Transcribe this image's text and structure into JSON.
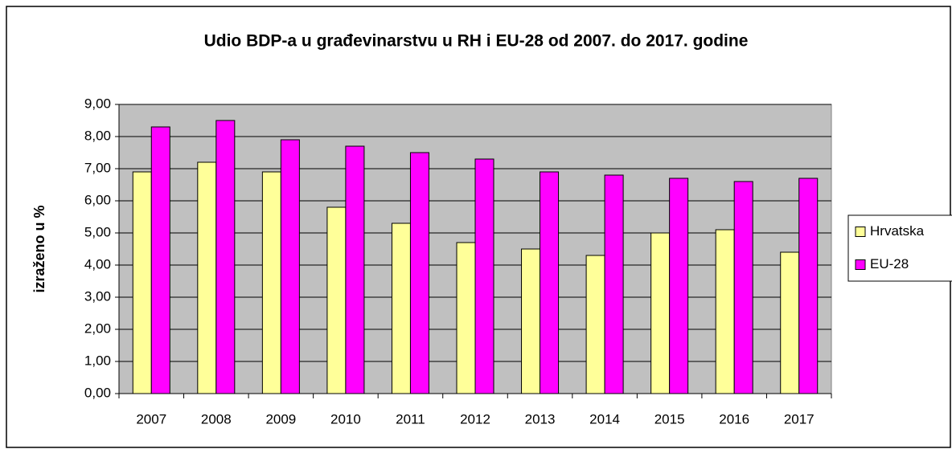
{
  "chart_data": {
    "type": "bar",
    "title": "Udio BDP-a u građevinarstvu u RH i EU-28 od 2007. do 2017. godine",
    "y_label": "izraženo u %",
    "categories": [
      "2007",
      "2008",
      "2009",
      "2010",
      "2011",
      "2012",
      "2013",
      "2014",
      "2015",
      "2016",
      "2017"
    ],
    "series": [
      {
        "name": "Hrvatska",
        "color": "#ffff99",
        "values": [
          6.9,
          7.2,
          6.9,
          5.8,
          5.3,
          4.7,
          4.5,
          4.3,
          5.0,
          5.1,
          4.4
        ]
      },
      {
        "name": "EU-28",
        "color": "#ff00ff",
        "values": [
          8.3,
          8.5,
          7.9,
          7.7,
          7.5,
          7.3,
          6.9,
          6.8,
          6.7,
          6.6,
          6.7
        ]
      }
    ],
    "ylim": [
      0,
      9
    ],
    "yticks": [
      {
        "value": 0,
        "label": "0,00"
      },
      {
        "value": 1,
        "label": "1,00"
      },
      {
        "value": 2,
        "label": "2,00"
      },
      {
        "value": 3,
        "label": "3,00"
      },
      {
        "value": 4,
        "label": "4,00"
      },
      {
        "value": 5,
        "label": "5,00"
      },
      {
        "value": 6,
        "label": "6,00"
      },
      {
        "value": 7,
        "label": "7,00"
      },
      {
        "value": 8,
        "label": "8,00"
      },
      {
        "value": 9,
        "label": "9,00"
      }
    ],
    "grid": true,
    "legend": "right"
  }
}
